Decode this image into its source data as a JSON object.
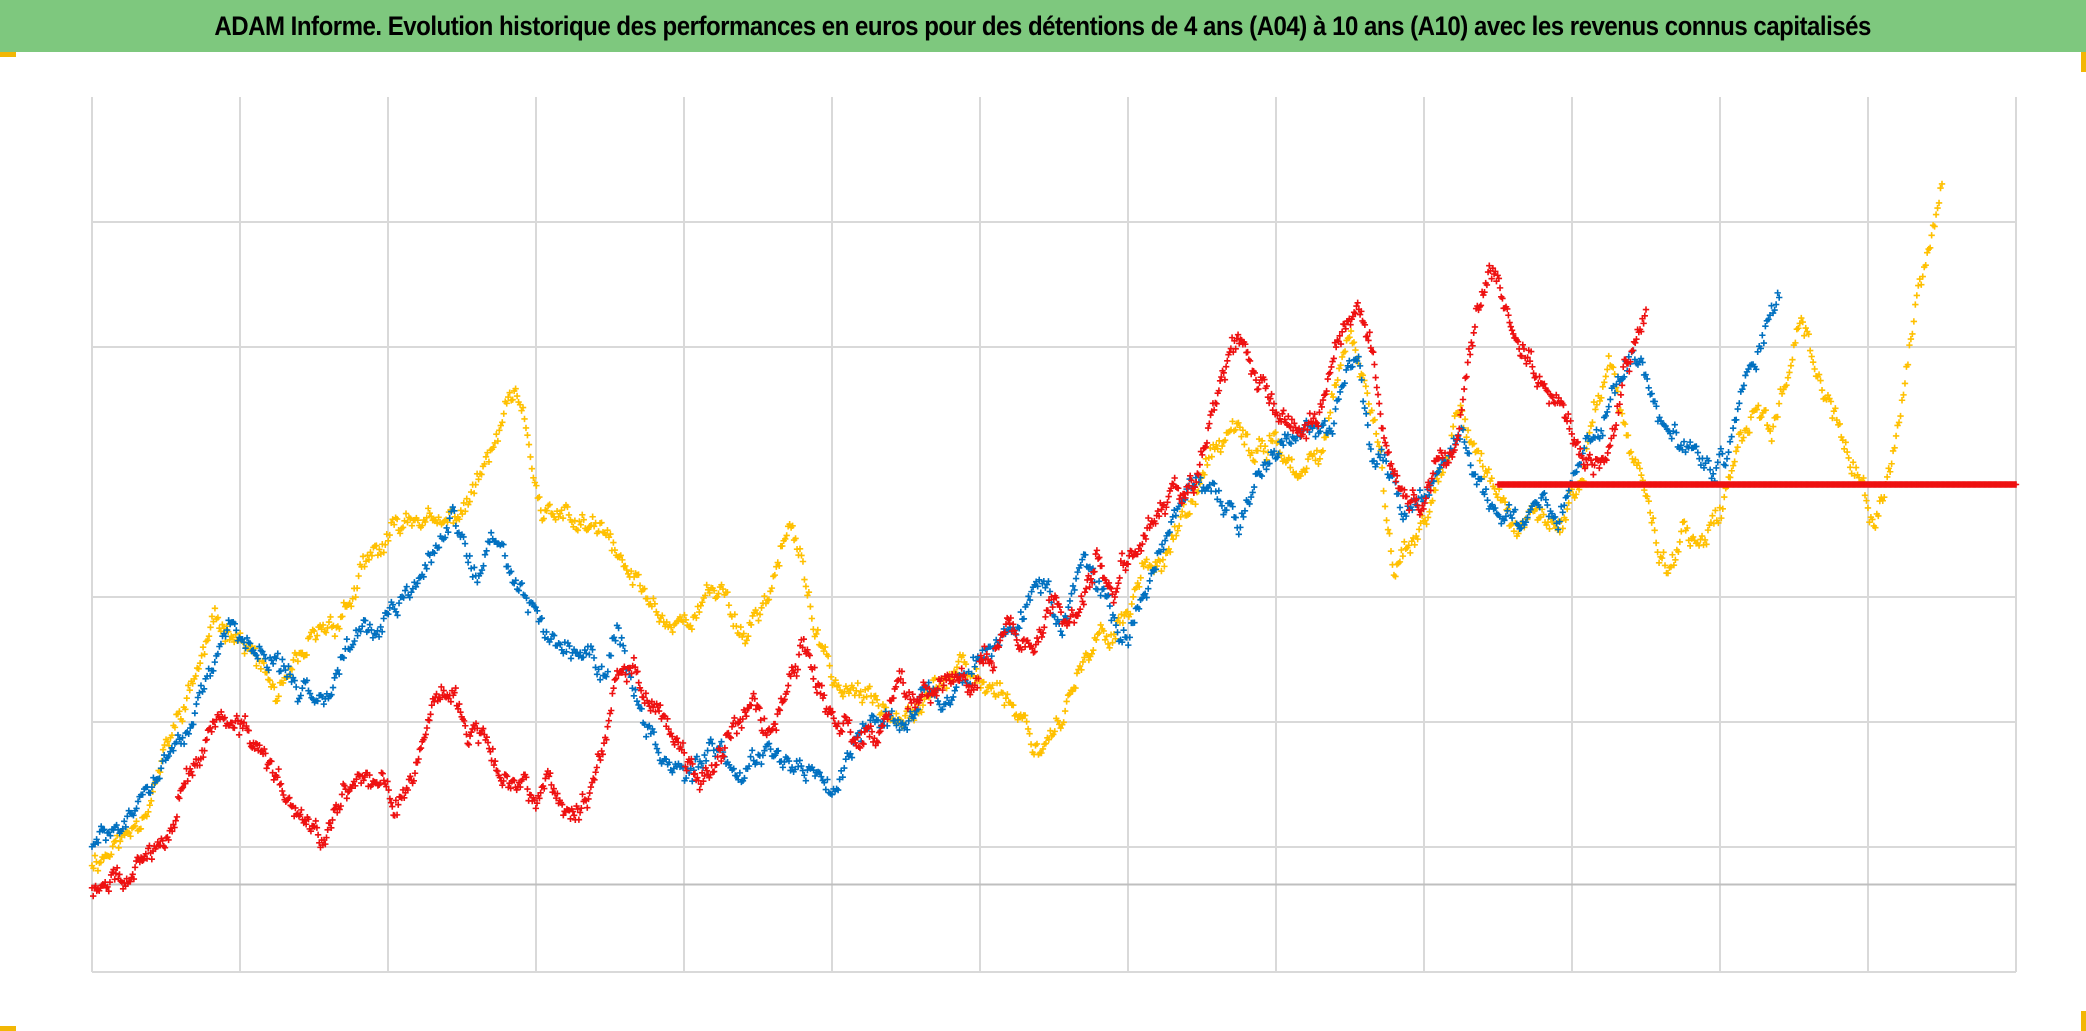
{
  "title": "ADAM Informe. Evolution historique des performances en euros pour des détentions de 4 ans (A04) à 10 ans (A10) avec les revenus connus capitalisés",
  "colors": {
    "header_bg": "#7ec87e",
    "accent": "#f2b705",
    "grid": "#d9d9d9",
    "series_yellow": "#ffc000",
    "series_blue": "#0070c0",
    "series_red": "#ee1111"
  },
  "chart_data": {
    "type": "scatter",
    "title": "ADAM Informe. Evolution historique des performances en euros pour des détentions de 4 ans (A04) à 10 ans (A10) avec les revenus connus capitalisés",
    "xlabel": "",
    "ylabel": "",
    "marker": "+",
    "grid": true,
    "axis_labels_shown": false,
    "x_unit": "observation index (days, relative)",
    "y_unit": "relative performance (unlabeled)",
    "xlim": [
      0,
      1300
    ],
    "ylim": [
      -0.7,
      6.3
    ],
    "grid_x": [
      0,
      100,
      200,
      300,
      400,
      500,
      600,
      700,
      800,
      900,
      1000,
      1100,
      1200,
      1300
    ],
    "grid_y": [
      -0.7,
      0,
      0.3,
      1.3,
      2.3,
      4.3,
      5.3
    ],
    "series": [
      {
        "name": "yellow",
        "color_key": "series_yellow",
        "count": 1250,
        "anchors": [
          [
            0,
            0.2
          ],
          [
            25,
            0.4
          ],
          [
            45,
            0.9
          ],
          [
            65,
            1.5
          ],
          [
            80,
            2.0
          ],
          [
            95,
            2.1
          ],
          [
            110,
            1.8
          ],
          [
            125,
            1.5
          ],
          [
            135,
            1.6
          ],
          [
            150,
            1.9
          ],
          [
            170,
            2.2
          ],
          [
            190,
            2.6
          ],
          [
            205,
            2.8
          ],
          [
            220,
            3.0
          ],
          [
            235,
            2.8
          ],
          [
            250,
            3.0
          ],
          [
            265,
            3.3
          ],
          [
            275,
            3.6
          ],
          [
            285,
            3.9
          ],
          [
            295,
            3.5
          ],
          [
            305,
            2.9
          ],
          [
            320,
            2.9
          ],
          [
            345,
            2.8
          ],
          [
            360,
            2.5
          ],
          [
            375,
            2.3
          ],
          [
            390,
            2.1
          ],
          [
            410,
            2.2
          ],
          [
            425,
            2.4
          ],
          [
            440,
            2.0
          ],
          [
            455,
            2.3
          ],
          [
            470,
            2.8
          ],
          [
            480,
            2.6
          ],
          [
            490,
            1.9
          ],
          [
            505,
            1.6
          ],
          [
            520,
            1.5
          ],
          [
            535,
            1.4
          ],
          [
            550,
            1.5
          ],
          [
            560,
            1.5
          ],
          [
            580,
            1.7
          ],
          [
            600,
            1.6
          ],
          [
            615,
            1.6
          ],
          [
            630,
            1.3
          ],
          [
            640,
            1.1
          ],
          [
            655,
            1.4
          ],
          [
            670,
            1.7
          ],
          [
            685,
            2.0
          ],
          [
            700,
            2.2
          ],
          [
            710,
            2.5
          ],
          [
            725,
            2.7
          ],
          [
            735,
            2.9
          ],
          [
            745,
            3.0
          ],
          [
            755,
            3.4
          ],
          [
            770,
            3.6
          ],
          [
            785,
            3.4
          ],
          [
            800,
            3.6
          ],
          [
            815,
            3.2
          ],
          [
            830,
            3.4
          ],
          [
            840,
            4.0
          ],
          [
            850,
            4.3
          ],
          [
            860,
            4.0
          ],
          [
            870,
            3.4
          ],
          [
            880,
            2.6
          ],
          [
            895,
            2.8
          ],
          [
            905,
            3.1
          ],
          [
            915,
            3.4
          ],
          [
            925,
            3.9
          ],
          [
            935,
            3.5
          ],
          [
            945,
            3.2
          ],
          [
            955,
            3.0
          ],
          [
            965,
            2.8
          ],
          [
            975,
            2.9
          ],
          [
            990,
            2.8
          ],
          [
            1005,
            3.2
          ],
          [
            1015,
            3.8
          ],
          [
            1025,
            4.2
          ],
          [
            1035,
            3.6
          ],
          [
            1045,
            3.3
          ],
          [
            1055,
            2.8
          ],
          [
            1065,
            2.5
          ],
          [
            1075,
            2.9
          ],
          [
            1085,
            2.6
          ],
          [
            1095,
            2.8
          ],
          [
            1105,
            3.1
          ],
          [
            1115,
            3.6
          ],
          [
            1125,
            3.9
          ],
          [
            1135,
            3.6
          ],
          [
            1145,
            4.1
          ],
          [
            1155,
            4.6
          ],
          [
            1165,
            4.2
          ],
          [
            1175,
            3.8
          ],
          [
            1185,
            3.5
          ],
          [
            1195,
            3.2
          ],
          [
            1205,
            2.8
          ],
          [
            1215,
            3.4
          ],
          [
            1225,
            4.0
          ],
          [
            1235,
            4.8
          ],
          [
            1245,
            5.3
          ],
          [
            1250,
            5.6
          ]
        ]
      },
      {
        "name": "blue",
        "color_key": "series_blue",
        "count": 1100,
        "anchors": [
          [
            0,
            0.3
          ],
          [
            25,
            0.5
          ],
          [
            45,
            0.9
          ],
          [
            65,
            1.3
          ],
          [
            80,
            1.6
          ],
          [
            95,
            2.1
          ],
          [
            105,
            2.0
          ],
          [
            115,
            1.8
          ],
          [
            130,
            1.7
          ],
          [
            140,
            1.4
          ],
          [
            155,
            1.6
          ],
          [
            170,
            1.9
          ],
          [
            185,
            2.0
          ],
          [
            200,
            2.1
          ],
          [
            215,
            2.3
          ],
          [
            230,
            2.6
          ],
          [
            245,
            2.9
          ],
          [
            260,
            2.5
          ],
          [
            270,
            2.7
          ],
          [
            285,
            2.5
          ],
          [
            295,
            2.2
          ],
          [
            310,
            2.0
          ],
          [
            330,
            1.9
          ],
          [
            345,
            1.7
          ],
          [
            355,
            2.0
          ],
          [
            365,
            1.6
          ],
          [
            375,
            1.3
          ],
          [
            390,
            1.0
          ],
          [
            405,
            0.9
          ],
          [
            420,
            1.0
          ],
          [
            440,
            0.9
          ],
          [
            455,
            1.2
          ],
          [
            465,
            1.0
          ],
          [
            480,
            1.0
          ],
          [
            495,
            0.8
          ],
          [
            505,
            0.9
          ],
          [
            520,
            1.3
          ],
          [
            535,
            1.5
          ],
          [
            550,
            1.3
          ],
          [
            565,
            1.6
          ],
          [
            580,
            1.5
          ],
          [
            595,
            1.7
          ],
          [
            610,
            1.9
          ],
          [
            625,
            2.1
          ],
          [
            640,
            2.5
          ],
          [
            655,
            2.0
          ],
          [
            670,
            2.6
          ],
          [
            685,
            2.2
          ],
          [
            700,
            2.0
          ],
          [
            715,
            2.4
          ],
          [
            730,
            3.0
          ],
          [
            745,
            3.2
          ],
          [
            760,
            3.0
          ],
          [
            775,
            2.8
          ],
          [
            790,
            3.4
          ],
          [
            805,
            3.6
          ],
          [
            820,
            3.7
          ],
          [
            835,
            3.6
          ],
          [
            845,
            4.0
          ],
          [
            855,
            4.4
          ],
          [
            865,
            3.4
          ],
          [
            875,
            3.3
          ],
          [
            885,
            3.0
          ],
          [
            895,
            3.1
          ],
          [
            910,
            3.3
          ],
          [
            925,
            3.6
          ],
          [
            935,
            3.2
          ],
          [
            950,
            3.0
          ],
          [
            965,
            2.9
          ],
          [
            975,
            3.1
          ],
          [
            990,
            3.0
          ],
          [
            1005,
            3.3
          ],
          [
            1015,
            3.6
          ],
          [
            1025,
            3.8
          ],
          [
            1040,
            4.2
          ],
          [
            1055,
            3.9
          ],
          [
            1065,
            3.6
          ],
          [
            1080,
            3.4
          ],
          [
            1095,
            3.3
          ],
          [
            1105,
            3.5
          ],
          [
            1115,
            3.9
          ],
          [
            1125,
            4.2
          ],
          [
            1135,
            4.6
          ],
          [
            1140,
            4.6
          ]
        ]
      },
      {
        "name": "red",
        "color_key": "series_red",
        "count": 1300,
        "anchors": [
          [
            0,
            0
          ],
          [
            20,
            0
          ],
          [
            40,
            0.2
          ],
          [
            55,
            0.6
          ],
          [
            70,
            1.0
          ],
          [
            85,
            1.3
          ],
          [
            100,
            1.2
          ],
          [
            115,
            1.0
          ],
          [
            130,
            0.7
          ],
          [
            140,
            0.5
          ],
          [
            155,
            0.4
          ],
          [
            165,
            0.6
          ],
          [
            180,
            0.9
          ],
          [
            195,
            0.8
          ],
          [
            210,
            0.7
          ],
          [
            225,
            1.2
          ],
          [
            240,
            1.5
          ],
          [
            255,
            1.3
          ],
          [
            270,
            1.1
          ],
          [
            285,
            0.8
          ],
          [
            295,
            0.7
          ],
          [
            310,
            0.9
          ],
          [
            320,
            0.6
          ],
          [
            330,
            0.5
          ],
          [
            345,
            1.2
          ],
          [
            355,
            1.6
          ],
          [
            365,
            1.8
          ],
          [
            375,
            1.4
          ],
          [
            390,
            1.3
          ],
          [
            400,
            1.1
          ],
          [
            410,
            0.9
          ],
          [
            425,
            1.1
          ],
          [
            440,
            1.4
          ],
          [
            455,
            1.3
          ],
          [
            470,
            1.5
          ],
          [
            480,
            1.9
          ],
          [
            490,
            1.6
          ],
          [
            500,
            1.3
          ],
          [
            515,
            1.1
          ],
          [
            530,
            1.2
          ],
          [
            545,
            1.6
          ],
          [
            560,
            1.5
          ],
          [
            575,
            1.5
          ],
          [
            590,
            1.6
          ],
          [
            605,
            1.9
          ],
          [
            620,
            2.1
          ],
          [
            635,
            1.9
          ],
          [
            650,
            2.3
          ],
          [
            665,
            2.1
          ],
          [
            680,
            2.6
          ],
          [
            690,
            2.4
          ],
          [
            700,
            2.6
          ],
          [
            715,
            2.9
          ],
          [
            730,
            3.1
          ],
          [
            745,
            3.2
          ],
          [
            755,
            3.8
          ],
          [
            765,
            4.1
          ],
          [
            775,
            4.3
          ],
          [
            790,
            4.0
          ],
          [
            800,
            3.8
          ],
          [
            815,
            3.6
          ],
          [
            830,
            3.8
          ],
          [
            845,
            4.5
          ],
          [
            855,
            4.7
          ],
          [
            865,
            4.2
          ],
          [
            875,
            3.3
          ],
          [
            890,
            3.0
          ],
          [
            905,
            3.2
          ],
          [
            920,
            3.5
          ],
          [
            935,
            4.5
          ],
          [
            945,
            4.9
          ],
          [
            960,
            4.4
          ],
          [
            975,
            4.1
          ],
          [
            985,
            3.9
          ],
          [
            995,
            3.6
          ],
          [
            1005,
            3.4
          ],
          [
            1015,
            3.3
          ],
          [
            1025,
            3.6
          ],
          [
            1035,
            4.1
          ],
          [
            1045,
            4.4
          ],
          [
            1050,
            4.6
          ]
        ],
        "flat_segment": {
          "x_from": 950,
          "x_to": 1300,
          "y": 3.2
        }
      }
    ]
  }
}
